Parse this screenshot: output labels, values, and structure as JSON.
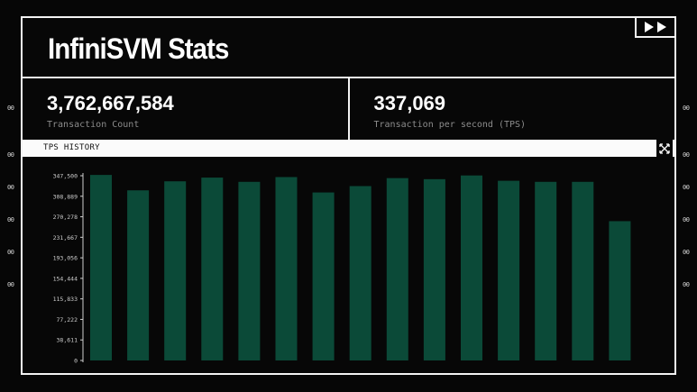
{
  "header": {
    "title": "InfiniSVM Stats"
  },
  "stats": [
    {
      "value": "3,762,667,584",
      "label": "Transaction Count"
    },
    {
      "value": "337,069",
      "label": "Transaction per second (TPS)"
    }
  ],
  "tps_history": {
    "label": "TPS HISTORY"
  },
  "side_marks": [
    "00",
    "00",
    "00",
    "00",
    "00",
    "00"
  ],
  "icons": {
    "play": "double-play-icon",
    "expand": "expand-arrows-icon"
  },
  "colors": {
    "background": "#060606",
    "border": "#f2f2f2",
    "bar": "#0b4a38",
    "label_gray": "#8c8c8c"
  },
  "chart_data": {
    "type": "bar",
    "ylim": [
      0,
      347500
    ],
    "yticks": [
      0,
      38611,
      77222,
      115833,
      154444,
      193056,
      231667,
      270278,
      308889,
      347500
    ],
    "ytick_labels": [
      "0",
      "38,611",
      "77,222",
      "115,833",
      "154,444",
      "193,056",
      "231,667",
      "270,278",
      "308,889",
      "347,500"
    ],
    "values": [
      349000,
      320000,
      337000,
      344000,
      336000,
      345000,
      316000,
      328000,
      343000,
      341000,
      348000,
      338000,
      336000,
      336000,
      262000
    ],
    "grid": false,
    "legend": "none"
  }
}
